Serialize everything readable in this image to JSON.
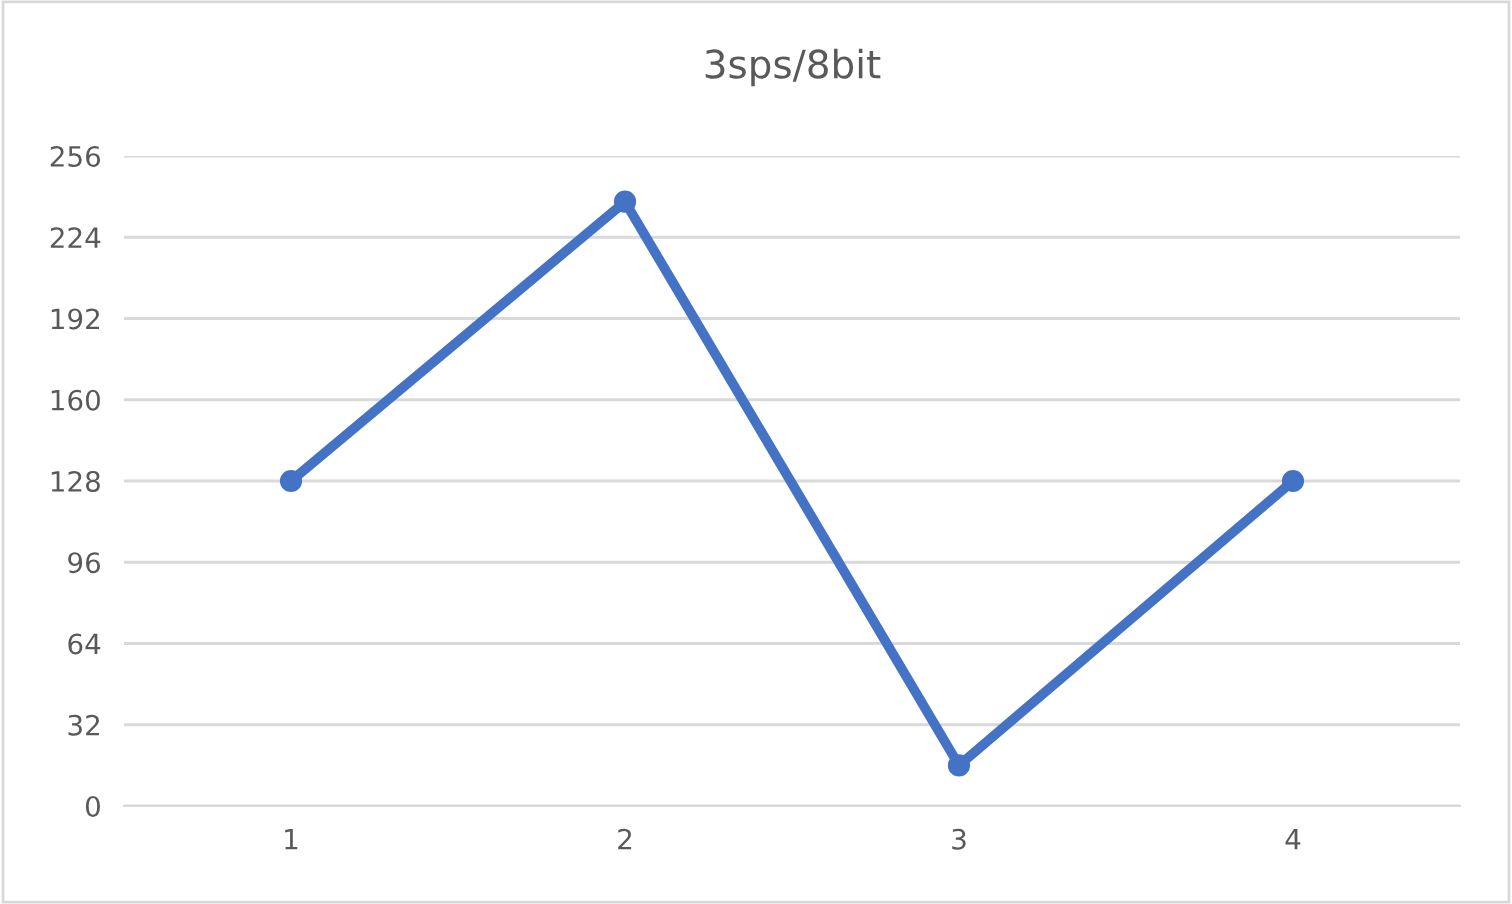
{
  "chart_data": {
    "type": "line",
    "title": "3sps/8bit",
    "categories": [
      "1",
      "2",
      "3",
      "4"
    ],
    "series": [
      {
        "color": "#4472c4",
        "values": [
          128,
          238,
          16,
          128
        ]
      }
    ],
    "ylim": [
      0,
      256
    ],
    "yticks": [
      0,
      32,
      64,
      96,
      128,
      160,
      192,
      224,
      256
    ],
    "grid": "y",
    "marker": "circle",
    "line_style": "solid",
    "legend": false
  }
}
